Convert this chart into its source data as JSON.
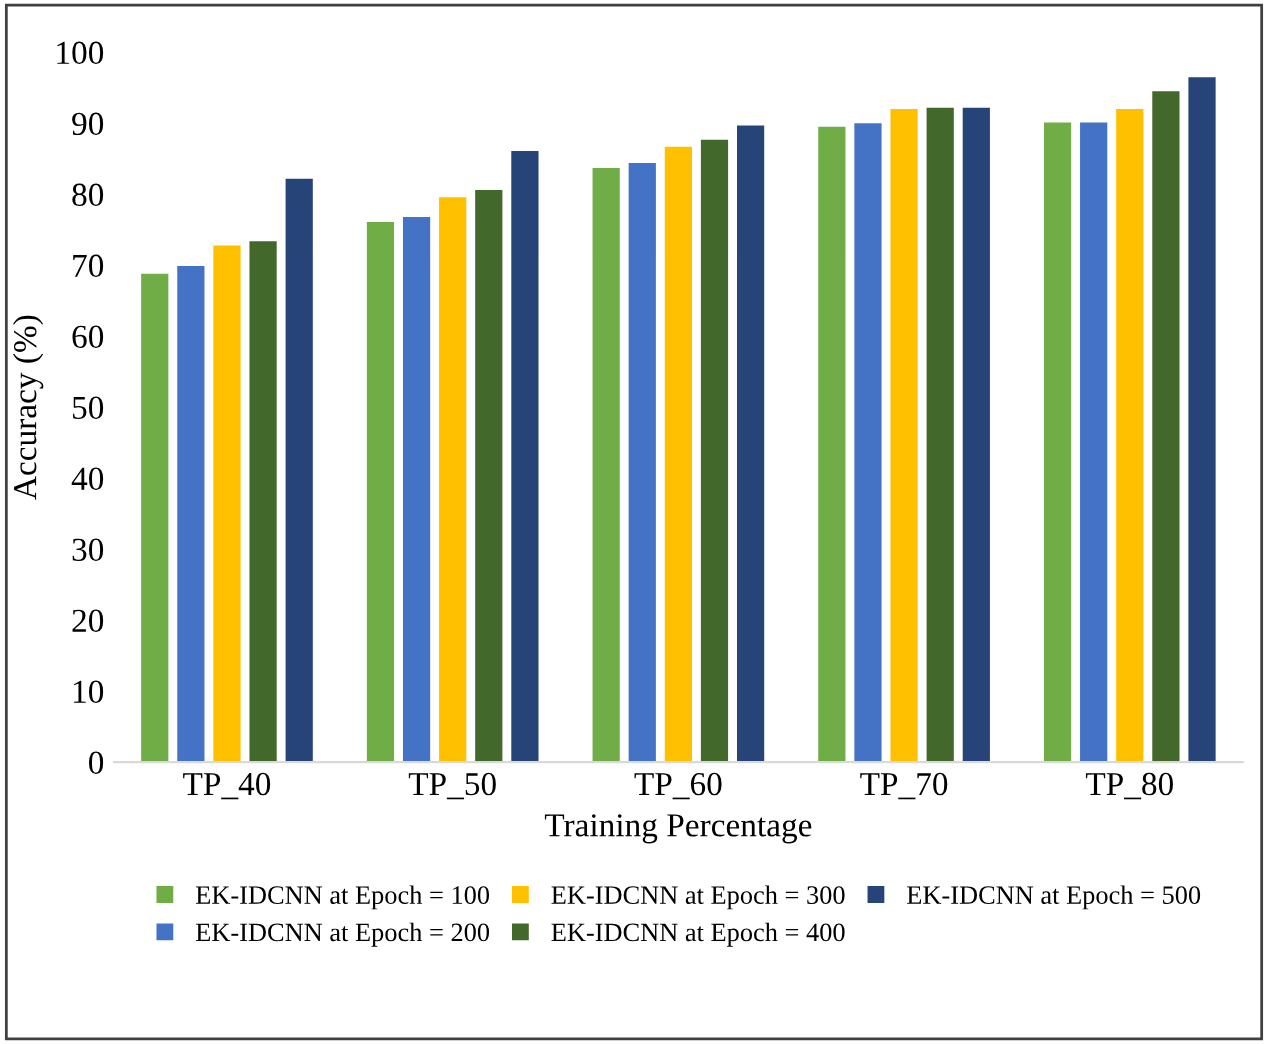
{
  "chart_data": {
    "type": "bar",
    "xlabel": "Training Percentage",
    "ylabel": "Accuracy (%)",
    "categories": [
      "TP_40",
      "TP_50",
      "TP_60",
      "TP_70",
      "TP_80"
    ],
    "series": [
      {
        "name": "EK-IDCNN at Epoch = 100",
        "color": "#70ad47",
        "values": [
          68.9,
          76.2,
          83.8,
          89.6,
          90.2
        ]
      },
      {
        "name": "EK-IDCNN at Epoch = 200",
        "color": "#4472c4",
        "values": [
          70.0,
          76.9,
          84.5,
          90.1,
          90.2
        ]
      },
      {
        "name": "EK-IDCNN at Epoch = 300",
        "color": "#ffc000",
        "values": [
          72.9,
          79.7,
          86.8,
          92.1,
          92.1
        ]
      },
      {
        "name": "EK-IDCNN at Epoch = 400",
        "color": "#43682b",
        "values": [
          73.5,
          80.7,
          87.8,
          92.3,
          94.6
        ]
      },
      {
        "name": "EK-IDCNN at Epoch = 500",
        "color": "#264478",
        "values": [
          82.3,
          86.2,
          89.8,
          92.3,
          96.6
        ]
      }
    ],
    "ylim": [
      0,
      100
    ],
    "yticks": [
      0,
      10,
      20,
      30,
      40,
      50,
      60,
      70,
      80,
      90,
      100
    ],
    "grid": false,
    "legend": "bottom"
  }
}
